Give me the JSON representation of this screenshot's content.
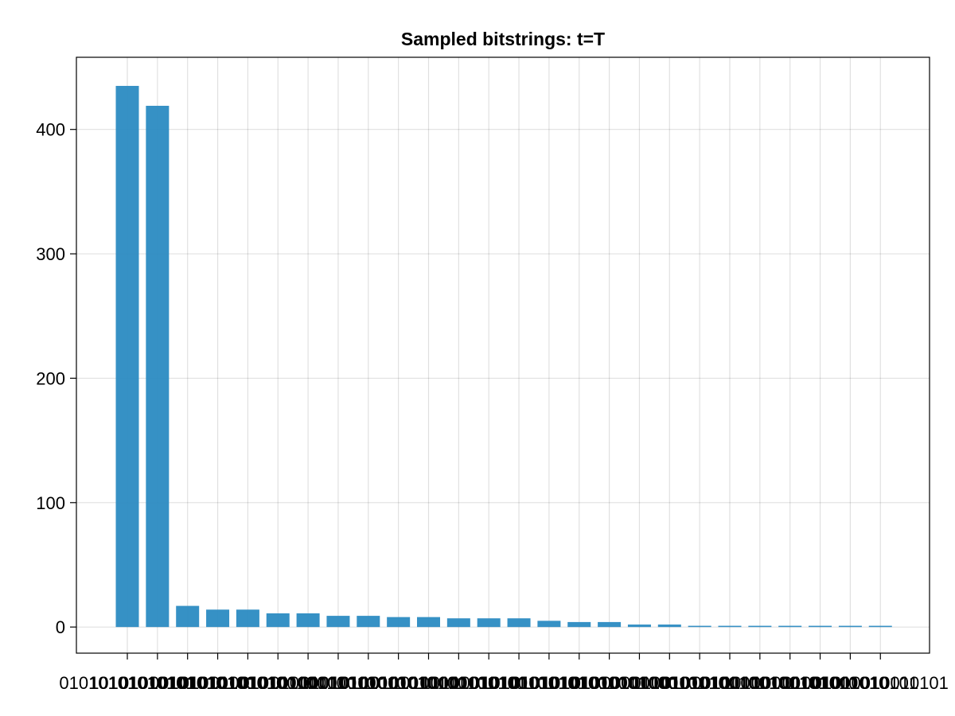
{
  "chart_data": {
    "type": "bar",
    "title": "Sampled bitstrings: t=T",
    "xlabel": "",
    "ylabel": "",
    "categories": [
      "01010101010101",
      "10101010101010",
      "01010101010100",
      "00101010101010",
      "01010101010010",
      "01001010101010",
      "01010100101010",
      "01010010101010",
      "01010101001010",
      "10100101010101",
      "10101010010101",
      "10101001010101",
      "10101010100101",
      "10010101010101",
      "10101010101001",
      "01010101010001",
      "10101010101000",
      "01010101000101",
      "00010101010101",
      "01001010100101",
      "01010100100101",
      "00101010100101",
      "10100100101010",
      "10010101001010",
      "01001001010101",
      "01010010010101"
    ],
    "values": [
      435,
      419,
      17,
      14,
      14,
      11,
      11,
      9,
      9,
      8,
      8,
      7,
      7,
      7,
      5,
      4,
      4,
      2,
      2,
      1,
      1,
      1,
      1,
      1,
      1,
      1
    ],
    "ylim": [
      -21,
      458
    ],
    "yticks": [
      0,
      100,
      200,
      300,
      400
    ],
    "grid": true,
    "bar_color": "#2b8bc2",
    "bar_opacity": 0.95
  }
}
